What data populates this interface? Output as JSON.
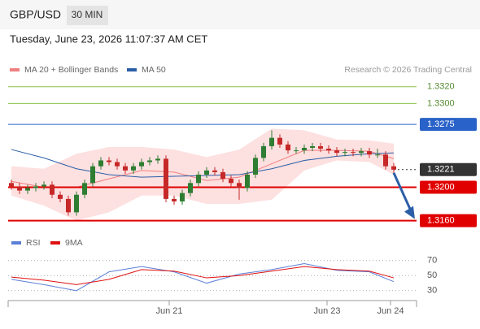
{
  "header": {
    "symbol": "GBP/USD",
    "timeframe": "30 MIN",
    "datetime": "Tuesday, June 23, 2026 11:07:37 AM CET",
    "credit": "Research © 2026 Trading Central"
  },
  "chart_data": [
    {
      "type": "candlestick",
      "up_color": "#2e7d32",
      "down_color": "#c62828",
      "x": [
        0,
        1,
        2,
        3,
        4,
        5,
        6,
        7,
        8,
        9,
        10,
        11,
        12,
        13,
        14,
        15,
        16,
        17,
        18,
        19,
        20,
        21,
        22,
        23,
        24,
        25,
        26,
        27,
        28,
        29,
        30,
        31,
        32,
        33,
        34,
        35,
        36,
        37,
        38,
        39,
        40,
        41,
        42,
        43,
        44,
        45,
        46,
        47
      ],
      "open": [
        1.3205,
        1.3201,
        1.3196,
        1.3199,
        1.3201,
        1.3203,
        1.3191,
        1.3186,
        1.317,
        1.3191,
        1.3205,
        1.3225,
        1.3232,
        1.323,
        1.3225,
        1.322,
        1.3225,
        1.323,
        1.3232,
        1.3234,
        1.3186,
        1.3183,
        1.3193,
        1.3205,
        1.3215,
        1.322,
        1.3218,
        1.321,
        1.3205,
        1.3199,
        1.3215,
        1.3235,
        1.3249,
        1.3259,
        1.3251,
        1.3244,
        1.3244,
        1.3247,
        1.3249,
        1.3246,
        1.3244,
        1.3241,
        1.3242,
        1.3241,
        1.3243,
        1.3239,
        1.3239,
        1.3225
      ],
      "high": [
        1.3209,
        1.3205,
        1.3203,
        1.3205,
        1.3207,
        1.3207,
        1.3195,
        1.319,
        1.3195,
        1.3209,
        1.3229,
        1.3236,
        1.3236,
        1.3234,
        1.3229,
        1.3229,
        1.3234,
        1.3236,
        1.3238,
        1.3238,
        1.319,
        1.3197,
        1.3209,
        1.3219,
        1.3224,
        1.3224,
        1.3222,
        1.3214,
        1.3209,
        1.3219,
        1.3239,
        1.3253,
        1.3268,
        1.3263,
        1.3255,
        1.3248,
        1.3251,
        1.3253,
        1.3253,
        1.325,
        1.3248,
        1.3246,
        1.3246,
        1.3247,
        1.3247,
        1.3246,
        1.3243,
        1.3229
      ],
      "low": [
        1.3197,
        1.3192,
        1.3192,
        1.3195,
        1.3197,
        1.3187,
        1.3182,
        1.3166,
        1.3166,
        1.3187,
        1.3201,
        1.3221,
        1.3226,
        1.3221,
        1.3216,
        1.3216,
        1.3221,
        1.3226,
        1.3228,
        1.3182,
        1.3179,
        1.3179,
        1.3189,
        1.3201,
        1.3211,
        1.3214,
        1.3206,
        1.3201,
        1.3185,
        1.3195,
        1.3211,
        1.3231,
        1.3245,
        1.3247,
        1.324,
        1.324,
        1.324,
        1.3243,
        1.3242,
        1.324,
        1.3237,
        1.3237,
        1.3237,
        1.3237,
        1.3235,
        1.3235,
        1.3221,
        1.3217
      ],
      "close": [
        1.3201,
        1.3196,
        1.3199,
        1.3201,
        1.3203,
        1.3191,
        1.3186,
        1.317,
        1.3191,
        1.3205,
        1.3225,
        1.3232,
        1.323,
        1.3225,
        1.322,
        1.3225,
        1.323,
        1.3232,
        1.3234,
        1.3186,
        1.3183,
        1.3193,
        1.3205,
        1.3215,
        1.322,
        1.3218,
        1.321,
        1.3205,
        1.3199,
        1.3215,
        1.3235,
        1.3249,
        1.3259,
        1.3251,
        1.3244,
        1.3244,
        1.3247,
        1.3249,
        1.3246,
        1.3244,
        1.3241,
        1.3242,
        1.3241,
        1.3243,
        1.3239,
        1.3239,
        1.3225,
        1.3221
      ],
      "series": [
        {
          "name": "MA 20 + Bollinger Bands",
          "color": "#f08080",
          "band_color": "#fde0e0",
          "x": [
            0,
            4,
            8,
            12,
            16,
            20,
            24,
            28,
            32,
            36,
            40,
            44,
            47
          ],
          "values": [
            1.3207,
            1.32,
            1.32,
            1.321,
            1.322,
            1.3218,
            1.3208,
            1.3212,
            1.3228,
            1.3244,
            1.3244,
            1.3243,
            1.3234
          ],
          "upper": [
            1.3225,
            1.3222,
            1.324,
            1.3248,
            1.3248,
            1.3245,
            1.3236,
            1.3245,
            1.327,
            1.3268,
            1.3257,
            1.3256,
            1.3252
          ],
          "lower": [
            1.319,
            1.3178,
            1.316,
            1.317,
            1.319,
            1.319,
            1.318,
            1.318,
            1.3185,
            1.322,
            1.3232,
            1.323,
            1.3215
          ]
        },
        {
          "name": "MA 50",
          "color": "#2b5ea7",
          "x": [
            0,
            4,
            8,
            12,
            16,
            20,
            24,
            28,
            32,
            36,
            40,
            44,
            47
          ],
          "values": [
            1.3245,
            1.3235,
            1.3222,
            1.3215,
            1.3212,
            1.3213,
            1.3214,
            1.3215,
            1.3222,
            1.3232,
            1.3237,
            1.324,
            1.3241
          ]
        }
      ],
      "levels": [
        {
          "value": 1.332,
          "label": "1.3320",
          "color": "#8bc34a",
          "boxed": false,
          "style": "solid"
        },
        {
          "value": 1.33,
          "label": "1.3300",
          "color": "#8bc34a",
          "boxed": false,
          "style": "solid"
        },
        {
          "value": 1.3275,
          "label": "1.3275",
          "color": "#2962c8",
          "boxed": true,
          "style": "solid"
        },
        {
          "value": 1.3221,
          "label": "1.3221",
          "color": "#333333",
          "boxed": true,
          "style": "dotted"
        },
        {
          "value": 1.32,
          "label": "1.3200",
          "color": "#e00000",
          "boxed": true,
          "style": "solid"
        },
        {
          "value": 1.316,
          "label": "1.3160",
          "color": "#e00000",
          "boxed": true,
          "style": "solid"
        }
      ],
      "xlim": [
        -0.4,
        49.8
      ],
      "ylim": [
        1.3149,
        1.3346
      ],
      "xticks": [
        {
          "value": 19.4,
          "label": "Jun 21"
        },
        {
          "value": 38.8,
          "label": "Jun 23"
        },
        {
          "value": 46.6,
          "label": "Jun 24"
        }
      ]
    },
    {
      "type": "line",
      "x": [
        0,
        4,
        8,
        12,
        16,
        20,
        24,
        28,
        32,
        36,
        40,
        44,
        47
      ],
      "series": [
        {
          "name": "RSI",
          "color": "#5b7fd6",
          "values": [
            45,
            38,
            30,
            55,
            62,
            55,
            40,
            52,
            58,
            66,
            57,
            55,
            42
          ]
        },
        {
          "name": "9MA",
          "color": "#e01010",
          "values": [
            48,
            44,
            38,
            45,
            58,
            56,
            47,
            50,
            56,
            62,
            58,
            56,
            47
          ]
        }
      ],
      "xlim": [
        -0.4,
        49.8
      ],
      "ylim": [
        19,
        87
      ],
      "yticks": [
        30,
        50,
        70
      ]
    }
  ]
}
